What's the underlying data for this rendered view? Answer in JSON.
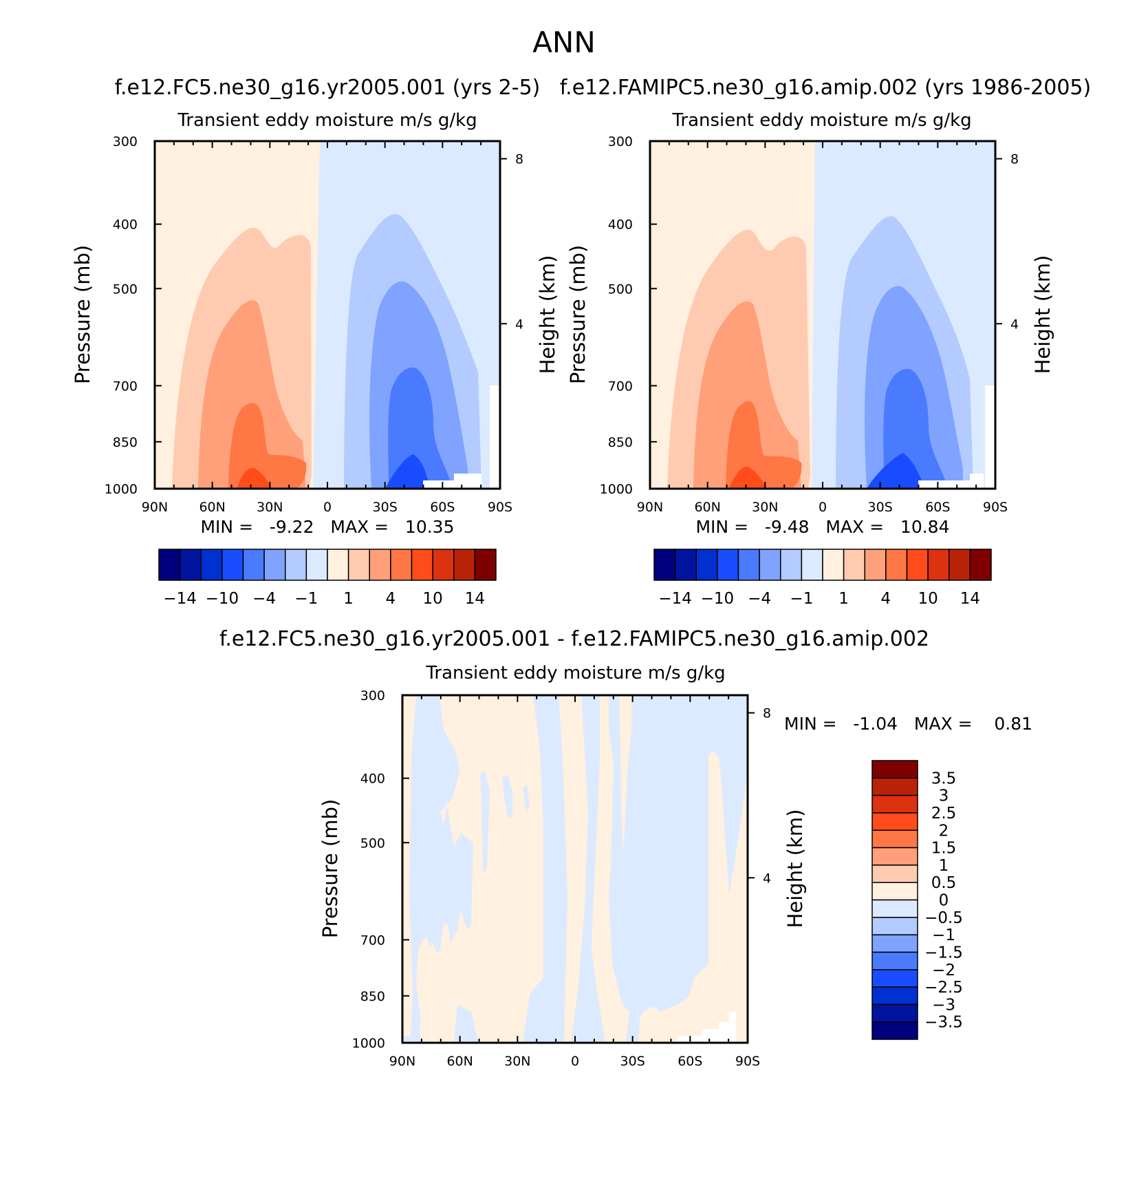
{
  "title": "ANN",
  "chart_data": [
    {
      "type": "heatmap",
      "title": "f.e12.FC5.ne30_g16.yr2005.001 (yrs 2-5)",
      "subtitle": "Transient eddy moisture m/s g/kg",
      "xlabel": "",
      "ylabel": "Pressure (mb)",
      "ylabel_right": "Height (km)",
      "x_ticks": [
        "90N",
        "60N",
        "30N",
        "0",
        "30S",
        "60S",
        "90S"
      ],
      "y_ticks": [
        "300",
        "400",
        "500",
        "700",
        "850",
        "1000"
      ],
      "y_right_ticks": [
        "8",
        "4"
      ],
      "xlim": [
        90,
        -90
      ],
      "ylim": [
        1000,
        300
      ],
      "y_scale": "log",
      "stats": "MIN =   -9.22   MAX =   10.35",
      "stats_min": -9.22,
      "stats_max": 10.35,
      "colorbar": {
        "orientation": "horizontal",
        "colors": [
          "#00007f",
          "#0014a0",
          "#0030d0",
          "#1a4cff",
          "#4a7bff",
          "#7fa3ff",
          "#b3cbff",
          "#dceaff",
          "#fff0e0",
          "#ffcbb0",
          "#ffa07a",
          "#ff7744",
          "#ff4c1a",
          "#dc3210",
          "#b82308",
          "#7f0000"
        ],
        "labels": [
          "-14",
          "-10",
          "-4",
          "-1",
          "1",
          "4",
          "10",
          "14"
        ]
      }
    },
    {
      "type": "heatmap",
      "title": "f.e12.FAMIPC5.ne30_g16.amip.002 (yrs 1986-2005)",
      "subtitle": "Transient eddy moisture m/s g/kg",
      "xlabel": "",
      "ylabel": "Pressure (mb)",
      "ylabel_right": "Height (km)",
      "x_ticks": [
        "90N",
        "60N",
        "30N",
        "0",
        "30S",
        "60S",
        "90S"
      ],
      "y_ticks": [
        "300",
        "400",
        "500",
        "700",
        "850",
        "1000"
      ],
      "y_right_ticks": [
        "8",
        "4"
      ],
      "xlim": [
        90,
        -90
      ],
      "ylim": [
        1000,
        300
      ],
      "y_scale": "log",
      "stats": "MIN =   -9.48   MAX =   10.84",
      "stats_min": -9.48,
      "stats_max": 10.84,
      "colorbar": {
        "orientation": "horizontal",
        "colors": [
          "#00007f",
          "#0014a0",
          "#0030d0",
          "#1a4cff",
          "#4a7bff",
          "#7fa3ff",
          "#b3cbff",
          "#dceaff",
          "#fff0e0",
          "#ffcbb0",
          "#ffa07a",
          "#ff7744",
          "#ff4c1a",
          "#dc3210",
          "#b82308",
          "#7f0000"
        ],
        "labels": [
          "-14",
          "-10",
          "-4",
          "-1",
          "1",
          "4",
          "10",
          "14"
        ]
      }
    },
    {
      "type": "heatmap",
      "title": "f.e12.FC5.ne30_g16.yr2005.001 - f.e12.FAMIPC5.ne30_g16.amip.002",
      "subtitle": "Transient eddy moisture m/s g/kg",
      "xlabel": "",
      "ylabel": "Pressure (mb)",
      "ylabel_right": "Height (km)",
      "x_ticks": [
        "90N",
        "60N",
        "30N",
        "0",
        "30S",
        "60S",
        "90S"
      ],
      "y_ticks": [
        "300",
        "400",
        "500",
        "700",
        "850",
        "1000"
      ],
      "y_right_ticks": [
        "8",
        "4"
      ],
      "xlim": [
        90,
        -90
      ],
      "ylim": [
        1000,
        300
      ],
      "y_scale": "log",
      "stats": "MIN =   -1.04   MAX =    0.81",
      "stats_min": -1.04,
      "stats_max": 0.81,
      "colorbar": {
        "orientation": "vertical",
        "colors": [
          "#7f0000",
          "#b82308",
          "#dc3210",
          "#ff4c1a",
          "#ff7744",
          "#ffa07a",
          "#ffcbb0",
          "#fff0e0",
          "#dceaff",
          "#b3cbff",
          "#7fa3ff",
          "#4a7bff",
          "#1a4cff",
          "#0030d0",
          "#0014a0",
          "#00007f"
        ],
        "labels": [
          "3.5",
          "3",
          "2.5",
          "2",
          "1.5",
          "1",
          "0.5",
          "0",
          "-0.5",
          "-1",
          "-1.5",
          "-2",
          "-2.5",
          "-3",
          "-3.5"
        ]
      }
    }
  ]
}
